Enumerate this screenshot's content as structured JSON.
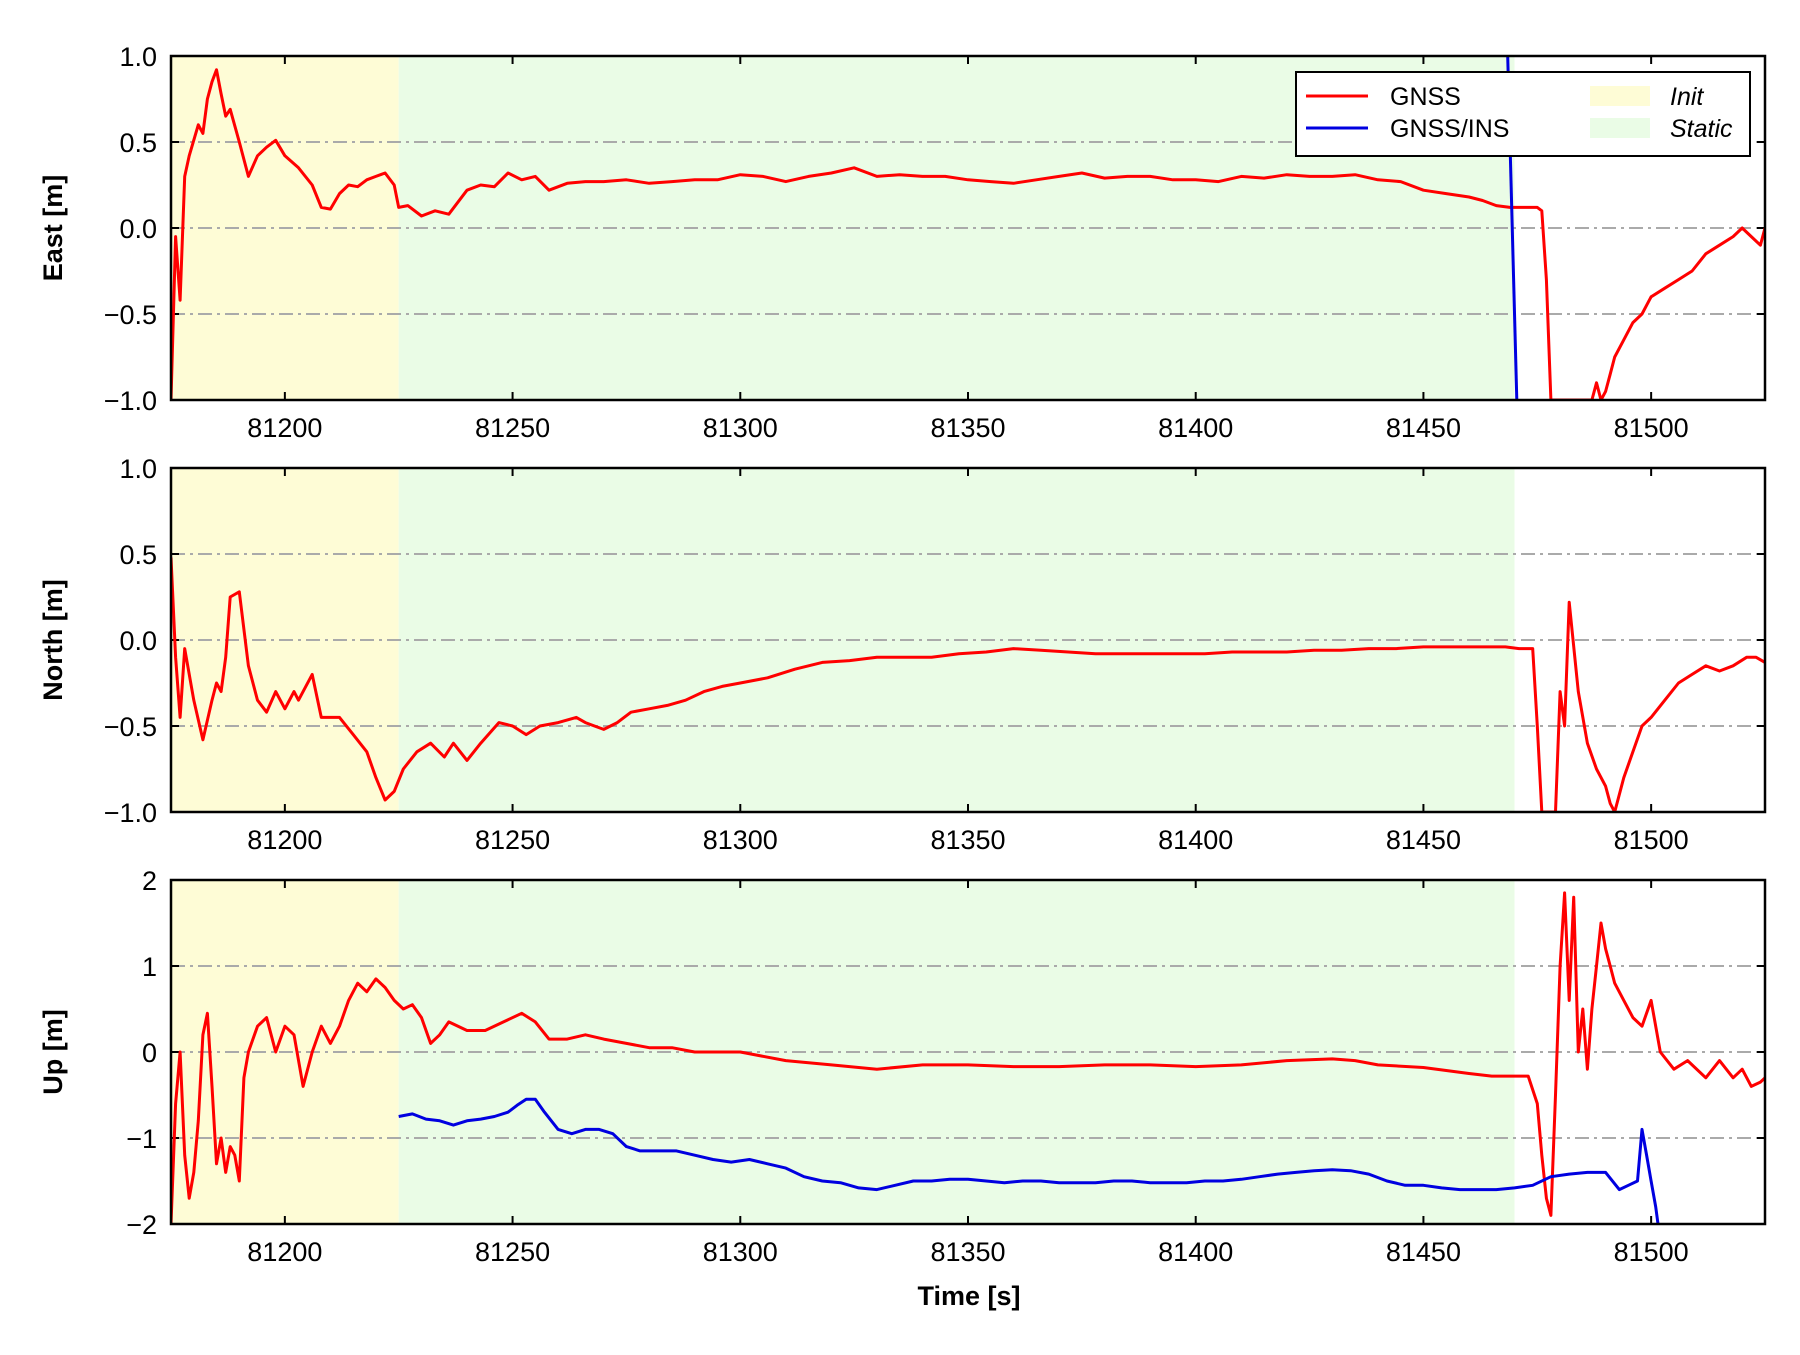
{
  "chart_data": [
    {
      "type": "line",
      "ylabel": "East [m]",
      "xlabel": "",
      "xlim": [
        81175,
        81525
      ],
      "ylim": [
        -1,
        1
      ],
      "x_ticks": [
        "81200",
        "81250",
        "81300",
        "81350",
        "81400",
        "81450",
        "81500"
      ],
      "y_ticks": [
        "1.0",
        "0.5",
        "0.0",
        "−0.5",
        "−1.0"
      ],
      "grid": "horizontal dash-dot",
      "legend": {
        "placement": "top-right",
        "entries": [
          "GNSS",
          "GNSS/INS"
        ],
        "regions": [
          "Init",
          "Static"
        ]
      },
      "regions": [
        {
          "name": "Init",
          "x": [
            81175,
            81225
          ]
        },
        {
          "name": "Static",
          "x": [
            81225,
            81470
          ]
        }
      ],
      "series": [
        {
          "name": "GNSS",
          "x": [
            81175,
            81176,
            81177,
            81178,
            81179,
            81181,
            81182,
            81183,
            81184,
            81185,
            81186,
            81187,
            81188,
            81190,
            81192,
            81194,
            81196,
            81198,
            81200,
            81203,
            81206,
            81208,
            81210,
            81212,
            81214,
            81216,
            81218,
            81220,
            81222,
            81224,
            81225,
            81227,
            81230,
            81233,
            81236,
            81238,
            81240,
            81243,
            81246,
            81249,
            81252,
            81255,
            81258,
            81262,
            81266,
            81270,
            81275,
            81280,
            81285,
            81290,
            81295,
            81300,
            81305,
            81310,
            81315,
            81320,
            81325,
            81330,
            81335,
            81340,
            81345,
            81350,
            81355,
            81360,
            81365,
            81370,
            81375,
            81380,
            81385,
            81390,
            81395,
            81400,
            81405,
            81410,
            81415,
            81420,
            81425,
            81430,
            81435,
            81440,
            81445,
            81450,
            81455,
            81460,
            81463,
            81466,
            81469,
            81470,
            81472,
            81474,
            81475,
            81476,
            81477,
            81478,
            81482,
            81485,
            81487,
            81488,
            81489,
            81490,
            81491,
            81492,
            81494,
            81496,
            81498,
            81500,
            81503,
            81506,
            81509,
            81512,
            81515,
            81518,
            81520,
            81522,
            81524,
            81525
          ],
          "values": [
            -1.0,
            -0.05,
            -0.42,
            0.3,
            0.42,
            0.6,
            0.55,
            0.75,
            0.85,
            0.92,
            0.78,
            0.65,
            0.69,
            0.5,
            0.3,
            0.42,
            0.47,
            0.51,
            0.42,
            0.35,
            0.25,
            0.12,
            0.11,
            0.2,
            0.25,
            0.24,
            0.28,
            0.3,
            0.32,
            0.25,
            0.12,
            0.13,
            0.07,
            0.1,
            0.08,
            0.15,
            0.22,
            0.25,
            0.24,
            0.32,
            0.28,
            0.3,
            0.22,
            0.26,
            0.27,
            0.27,
            0.28,
            0.26,
            0.27,
            0.28,
            0.28,
            0.31,
            0.3,
            0.27,
            0.3,
            0.32,
            0.35,
            0.3,
            0.31,
            0.3,
            0.3,
            0.28,
            0.27,
            0.26,
            0.28,
            0.3,
            0.32,
            0.29,
            0.3,
            0.3,
            0.28,
            0.28,
            0.27,
            0.3,
            0.29,
            0.31,
            0.3,
            0.3,
            0.31,
            0.28,
            0.27,
            0.22,
            0.2,
            0.18,
            0.16,
            0.13,
            0.12,
            0.12,
            0.12,
            0.12,
            0.12,
            0.1,
            -0.3,
            -1.0,
            -1.0,
            -1.0,
            -1.0,
            -0.9,
            -1.0,
            -0.95,
            -0.85,
            -0.75,
            -0.65,
            -0.55,
            -0.5,
            -0.4,
            -0.35,
            -0.3,
            -0.25,
            -0.15,
            -0.1,
            -0.05,
            0.0,
            -0.05,
            -0.1,
            0.0
          ]
        },
        {
          "name": "GNSS/INS",
          "x": [
            81468.5,
            81470.5
          ],
          "values": [
            1.0,
            -1.0
          ]
        }
      ]
    },
    {
      "type": "line",
      "ylabel": "North [m]",
      "xlabel": "",
      "xlim": [
        81175,
        81525
      ],
      "ylim": [
        -1,
        1
      ],
      "x_ticks": [
        "81200",
        "81250",
        "81300",
        "81350",
        "81400",
        "81450",
        "81500"
      ],
      "y_ticks": [
        "1.0",
        "0.5",
        "0.0",
        "−0.5",
        "−1.0"
      ],
      "grid": "horizontal dash-dot",
      "regions": [
        {
          "name": "Init",
          "x": [
            81175,
            81225
          ]
        },
        {
          "name": "Static",
          "x": [
            81225,
            81470
          ]
        }
      ],
      "series": [
        {
          "name": "GNSS",
          "x": [
            81175,
            81176,
            81177,
            81178,
            81180,
            81182,
            81184,
            81185,
            81186,
            81187,
            81188,
            81190,
            81192,
            81194,
            81196,
            81198,
            81200,
            81202,
            81203,
            81206,
            81208,
            81212,
            81215,
            81218,
            81220,
            81222,
            81224,
            81226,
            81229,
            81232,
            81235,
            81237,
            81240,
            81243,
            81247,
            81250,
            81253,
            81256,
            81260,
            81264,
            81266,
            81268,
            81270,
            81273,
            81276,
            81280,
            81284,
            81288,
            81292,
            81296,
            81300,
            81306,
            81312,
            81318,
            81324,
            81330,
            81336,
            81342,
            81348,
            81354,
            81360,
            81366,
            81372,
            81378,
            81384,
            81390,
            81396,
            81402,
            81408,
            81414,
            81420,
            81426,
            81432,
            81438,
            81444,
            81450,
            81456,
            81462,
            81468,
            81471,
            81474,
            81475,
            81476,
            81477,
            81478,
            81479,
            81480,
            81481,
            81482,
            81484,
            81486,
            81488,
            81490,
            81491,
            81492,
            81494,
            81496,
            81498,
            81500,
            81503,
            81506,
            81509,
            81512,
            81515,
            81518,
            81521,
            81523,
            81525
          ],
          "values": [
            0.48,
            -0.1,
            -0.45,
            -0.05,
            -0.35,
            -0.58,
            -0.35,
            -0.25,
            -0.3,
            -0.1,
            0.25,
            0.28,
            -0.15,
            -0.35,
            -0.42,
            -0.3,
            -0.4,
            -0.3,
            -0.35,
            -0.2,
            -0.45,
            -0.45,
            -0.55,
            -0.65,
            -0.8,
            -0.93,
            -0.88,
            -0.75,
            -0.65,
            -0.6,
            -0.68,
            -0.6,
            -0.7,
            -0.6,
            -0.48,
            -0.5,
            -0.55,
            -0.5,
            -0.48,
            -0.45,
            -0.48,
            -0.5,
            -0.52,
            -0.48,
            -0.42,
            -0.4,
            -0.38,
            -0.35,
            -0.3,
            -0.27,
            -0.25,
            -0.22,
            -0.17,
            -0.13,
            -0.12,
            -0.1,
            -0.1,
            -0.1,
            -0.08,
            -0.07,
            -0.05,
            -0.06,
            -0.07,
            -0.08,
            -0.08,
            -0.08,
            -0.08,
            -0.08,
            -0.07,
            -0.07,
            -0.07,
            -0.06,
            -0.06,
            -0.05,
            -0.05,
            -0.04,
            -0.04,
            -0.04,
            -0.04,
            -0.05,
            -0.05,
            -0.5,
            -1.0,
            -1.0,
            -1.0,
            -1.0,
            -0.3,
            -0.5,
            0.22,
            -0.3,
            -0.6,
            -0.75,
            -0.85,
            -0.95,
            -1.0,
            -0.8,
            -0.65,
            -0.5,
            -0.45,
            -0.35,
            -0.25,
            -0.2,
            -0.15,
            -0.18,
            -0.15,
            -0.1,
            -0.1,
            -0.13
          ]
        }
      ]
    },
    {
      "type": "line",
      "ylabel": "Up [m]",
      "xlabel": "Time [s]",
      "xlim": [
        81175,
        81525
      ],
      "ylim": [
        -2,
        2
      ],
      "x_ticks": [
        "81200",
        "81250",
        "81300",
        "81350",
        "81400",
        "81450",
        "81500"
      ],
      "y_ticks": [
        "2",
        "1",
        "0",
        "−1",
        "−2"
      ],
      "grid": "horizontal dash-dot",
      "regions": [
        {
          "name": "Init",
          "x": [
            81175,
            81225
          ]
        },
        {
          "name": "Static",
          "x": [
            81225,
            81470
          ]
        }
      ],
      "series": [
        {
          "name": "GNSS",
          "x": [
            81175,
            81176,
            81177,
            81178,
            81179,
            81180,
            81181,
            81182,
            81183,
            81184,
            81185,
            81186,
            81187,
            81188,
            81189,
            81190,
            81191,
            81192,
            81194,
            81196,
            81198,
            81200,
            81202,
            81204,
            81206,
            81208,
            81210,
            81212,
            81214,
            81216,
            81218,
            81220,
            81222,
            81224,
            81226,
            81228,
            81230,
            81232,
            81234,
            81236,
            81240,
            81244,
            81248,
            81252,
            81255,
            81258,
            81262,
            81266,
            81270,
            81275,
            81280,
            81285,
            81290,
            81295,
            81300,
            81310,
            81320,
            81330,
            81340,
            81350,
            81360,
            81370,
            81380,
            81390,
            81400,
            81410,
            81420,
            81430,
            81435,
            81440,
            81450,
            81460,
            81465,
            81470,
            81473,
            81475,
            81476,
            81477,
            81478,
            81479,
            81480,
            81481,
            81482,
            81483,
            81484,
            81485,
            81486,
            81487,
            81488,
            81489,
            81490,
            81491,
            81492,
            81494,
            81496,
            81498,
            81500,
            81502,
            81505,
            81508,
            81512,
            81515,
            81518,
            81520,
            81522,
            81524,
            81525
          ],
          "values": [
            -2.0,
            -0.6,
            0.0,
            -1.2,
            -1.7,
            -1.4,
            -0.8,
            0.2,
            0.45,
            -0.4,
            -1.3,
            -1.0,
            -1.4,
            -1.1,
            -1.2,
            -1.5,
            -0.3,
            0.0,
            0.3,
            0.4,
            0.0,
            0.3,
            0.2,
            -0.4,
            0.0,
            0.3,
            0.1,
            0.3,
            0.6,
            0.8,
            0.7,
            0.85,
            0.75,
            0.6,
            0.5,
            0.55,
            0.4,
            0.1,
            0.2,
            0.35,
            0.25,
            0.25,
            0.35,
            0.45,
            0.35,
            0.15,
            0.15,
            0.2,
            0.15,
            0.1,
            0.05,
            0.05,
            0.0,
            0.0,
            0.0,
            -0.1,
            -0.15,
            -0.2,
            -0.15,
            -0.15,
            -0.17,
            -0.17,
            -0.15,
            -0.15,
            -0.17,
            -0.15,
            -0.1,
            -0.08,
            -0.1,
            -0.15,
            -0.18,
            -0.25,
            -0.28,
            -0.28,
            -0.28,
            -0.6,
            -1.2,
            -1.7,
            -1.9,
            -0.5,
            1.0,
            1.85,
            0.6,
            1.8,
            0.0,
            0.5,
            -0.2,
            0.5,
            1.0,
            1.5,
            1.2,
            1.0,
            0.8,
            0.6,
            0.4,
            0.3,
            0.6,
            0.0,
            -0.2,
            -0.1,
            -0.3,
            -0.1,
            -0.3,
            -0.2,
            -0.4,
            -0.35,
            -0.3
          ]
        },
        {
          "name": "GNSS/INS",
          "x": [
            81225,
            81228,
            81231,
            81234,
            81237,
            81240,
            81243,
            81246,
            81249,
            81251,
            81253,
            81255,
            81257,
            81260,
            81263,
            81266,
            81269,
            81272,
            81275,
            81278,
            81282,
            81286,
            81290,
            81294,
            81298,
            81302,
            81306,
            81310,
            81314,
            81318,
            81322,
            81326,
            81330,
            81334,
            81338,
            81342,
            81346,
            81350,
            81354,
            81358,
            81362,
            81366,
            81370,
            81374,
            81378,
            81382,
            81386,
            81390,
            81394,
            81398,
            81402,
            81406,
            81410,
            81414,
            81418,
            81422,
            81426,
            81430,
            81434,
            81438,
            81442,
            81446,
            81450,
            81454,
            81458,
            81462,
            81466,
            81470,
            81474,
            81478,
            81482,
            81486,
            81490,
            81493,
            81495,
            81497,
            81498,
            81499,
            81500,
            81501,
            81501.5
          ],
          "values": [
            -0.75,
            -0.72,
            -0.78,
            -0.8,
            -0.85,
            -0.8,
            -0.78,
            -0.75,
            -0.7,
            -0.62,
            -0.55,
            -0.55,
            -0.7,
            -0.9,
            -0.95,
            -0.9,
            -0.9,
            -0.95,
            -1.1,
            -1.15,
            -1.15,
            -1.15,
            -1.2,
            -1.25,
            -1.28,
            -1.25,
            -1.3,
            -1.35,
            -1.45,
            -1.5,
            -1.52,
            -1.58,
            -1.6,
            -1.55,
            -1.5,
            -1.5,
            -1.48,
            -1.48,
            -1.5,
            -1.52,
            -1.5,
            -1.5,
            -1.52,
            -1.52,
            -1.52,
            -1.5,
            -1.5,
            -1.52,
            -1.52,
            -1.52,
            -1.5,
            -1.5,
            -1.48,
            -1.45,
            -1.42,
            -1.4,
            -1.38,
            -1.37,
            -1.38,
            -1.42,
            -1.5,
            -1.55,
            -1.55,
            -1.58,
            -1.6,
            -1.6,
            -1.6,
            -1.58,
            -1.55,
            -1.45,
            -1.42,
            -1.4,
            -1.4,
            -1.6,
            -1.55,
            -1.5,
            -0.9,
            -1.2,
            -1.5,
            -1.8,
            -2.0
          ]
        }
      ]
    }
  ],
  "legend_labels": {
    "gnss": "GNSS",
    "gnss_ins": "GNSS/INS",
    "init": "Init",
    "static": "Static"
  },
  "colors": {
    "gnss": "#ff0000",
    "gnss_ins": "#0000e0",
    "init": "#fefcd6",
    "static": "#eafce6",
    "grid": "#aaaaaa",
    "axis": "#000000"
  }
}
